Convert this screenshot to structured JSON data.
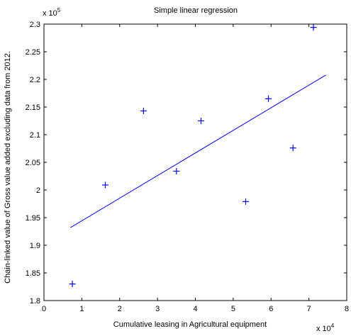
{
  "chart_data": {
    "type": "scatter",
    "title": "Simple linear regression",
    "xlabel": "Cumulative leasing in Agricultural equipment",
    "ylabel": "Chain-linked value of Gross value added excluding data from 2012.",
    "x_multiplier": {
      "base": "x 10",
      "exp": "4"
    },
    "y_multiplier": {
      "base": "x 10",
      "exp": "5"
    },
    "xlim": [
      0,
      80000
    ],
    "ylim": [
      180000,
      230000
    ],
    "x_ticks": [
      0,
      10000,
      20000,
      30000,
      40000,
      50000,
      60000,
      70000,
      80000
    ],
    "x_tick_labels": [
      "0",
      "1",
      "2",
      "3",
      "4",
      "5",
      "6",
      "7",
      "8"
    ],
    "y_ticks": [
      180000,
      185000,
      190000,
      195000,
      200000,
      205000,
      210000,
      215000,
      220000,
      225000,
      230000
    ],
    "y_tick_labels": [
      "1.8",
      "1.85",
      "1.9",
      "1.95",
      "2",
      "2.05",
      "2.1",
      "2.15",
      "2.2",
      "2.25",
      "2.3"
    ],
    "grid": false,
    "marker": "+",
    "color": "#0000ff",
    "points": [
      {
        "x": 7500,
        "y": 183000
      },
      {
        "x": 16200,
        "y": 200900
      },
      {
        "x": 26300,
        "y": 214300
      },
      {
        "x": 35000,
        "y": 203400
      },
      {
        "x": 41500,
        "y": 212500
      },
      {
        "x": 53300,
        "y": 197900
      },
      {
        "x": 59300,
        "y": 216500
      },
      {
        "x": 65800,
        "y": 207600
      },
      {
        "x": 71200,
        "y": 229400
      }
    ],
    "regression_line": {
      "x": [
        7000,
        74500
      ],
      "y": [
        193200,
        220800
      ]
    }
  }
}
